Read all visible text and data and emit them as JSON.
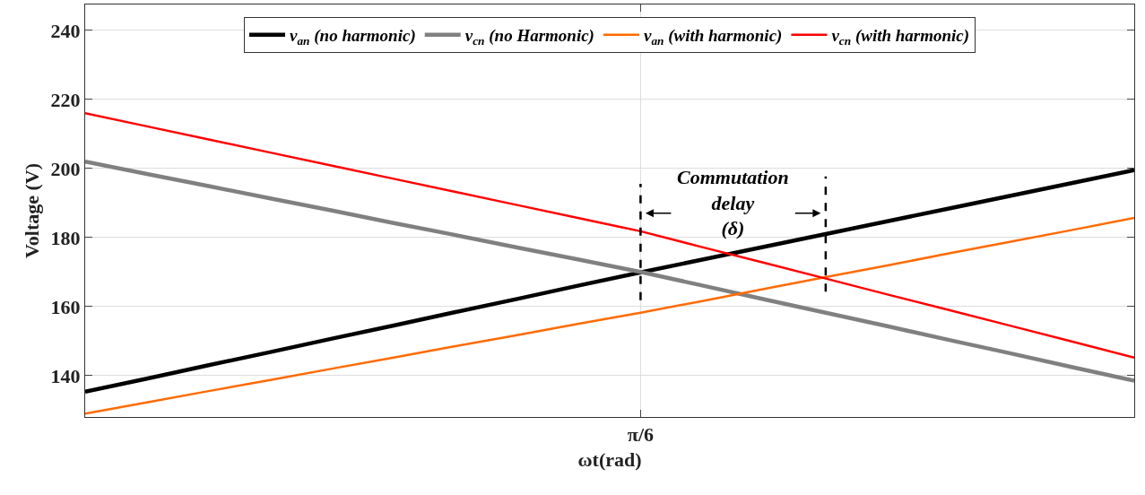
{
  "chart_data": {
    "type": "line",
    "xlabel": "ωt(rad)",
    "ylabel": "Voltage (V)",
    "categories": [
      null,
      null,
      null,
      null,
      null,
      null,
      null,
      null,
      null,
      "π/6",
      null,
      null,
      null,
      null,
      null,
      null,
      null,
      null
    ],
    "ylim": [
      128,
      247.5
    ],
    "yticks": [
      140,
      160,
      180,
      200,
      220,
      240
    ],
    "grid": true,
    "legend": "top",
    "marker": "none",
    "series": [
      {
        "name": "v$_{an}$ (no harmonic)",
        "color": "#000000",
        "values": [
          135.3,
          139.1,
          143.0,
          146.8,
          150.7,
          154.5,
          158.4,
          162.2,
          166.1,
          169.9,
          173.6,
          177.3,
          181.0,
          184.7,
          188.4,
          192.1,
          195.8,
          199.5
        ]
      },
      {
        "name": "v$_{cn}$ (no Harmonic)",
        "color": "#808080",
        "values": [
          202,
          198.4,
          194.9,
          191.3,
          187.8,
          184.2,
          180.7,
          177.1,
          173.6,
          170,
          166.1,
          162.1,
          158.2,
          154.3,
          150.3,
          146.4,
          142.4,
          138.5
        ]
      },
      {
        "name": "v$_{an}$ (with harmonic)",
        "color": "#ff6a00",
        "values": [
          129,
          132.2,
          135.5,
          138.7,
          142.0,
          145.2,
          148.5,
          151.7,
          155.0,
          158.2,
          161.6,
          165.1,
          168.5,
          171.9,
          175.4,
          178.8,
          182.2,
          185.7
        ]
      },
      {
        "name": "v$_{cn}$ (with harmonic)",
        "color": "#ff0000",
        "values": [
          216,
          212.2,
          208.4,
          204.6,
          200.8,
          197,
          193.2,
          189.4,
          185.6,
          181.8,
          177.2,
          172.7,
          168.1,
          163.5,
          159.0,
          154.4,
          149.8,
          145.2
        ]
      }
    ],
    "annotations": [
      "Commutation\ndelay\n(δ)"
    ]
  }
}
